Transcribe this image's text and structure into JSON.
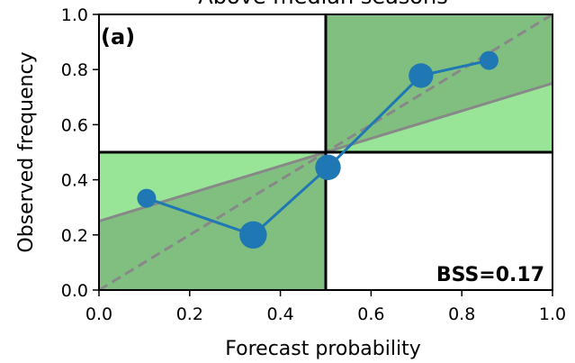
{
  "chart_data": {
    "type": "line",
    "title": "Above median seasons",
    "xlabel": "Forecast probability",
    "ylabel": "Observed frequency",
    "xlim": [
      0,
      1
    ],
    "ylim": [
      0,
      1
    ],
    "xticks": [
      "0.0",
      "0.2",
      "0.4",
      "0.6",
      "0.8",
      "1.0"
    ],
    "yticks": [
      "0.0",
      "0.2",
      "0.4",
      "0.6",
      "0.8",
      "1.0"
    ],
    "panel_label": "(a)",
    "annotation": "BSS=0.17",
    "grid": false,
    "series": [
      {
        "x": [
          0.105,
          0.34,
          0.505,
          0.71,
          0.86
        ],
        "y": [
          0.333,
          0.2,
          0.445,
          0.778,
          0.833
        ],
        "marker_size": [
          1,
          1.45,
          1.35,
          1.3,
          1
        ],
        "color": "#1f77b4"
      }
    ],
    "reference_lines": {
      "perfect_reliability": {
        "from": [
          0,
          0
        ],
        "to": [
          1,
          1
        ],
        "style": "dashed",
        "color": "#888888"
      },
      "no_skill": {
        "from": [
          0,
          0.25
        ],
        "to": [
          1,
          0.75
        ],
        "style": "solid",
        "color": "#888888"
      },
      "climatology_x": 0.5,
      "climatology_y": 0.5
    },
    "colors": {
      "skill_region": "#98e598",
      "skill_quadrant": "#80bf80"
    }
  }
}
